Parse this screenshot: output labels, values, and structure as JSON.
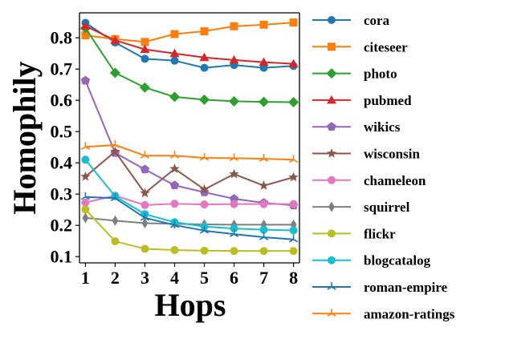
{
  "chart_data": {
    "type": "line",
    "title": "",
    "xlabel": "Hops",
    "ylabel": "Homophily",
    "x": [
      1,
      2,
      3,
      4,
      5,
      6,
      7,
      8
    ],
    "xlim": [
      0.8,
      8.2
    ],
    "ylim": [
      0.08,
      0.88
    ],
    "xticks": [
      "1",
      "2",
      "3",
      "4",
      "5",
      "6",
      "7",
      "8"
    ],
    "yticks": [
      "0.1",
      "0.2",
      "0.3",
      "0.4",
      "0.5",
      "0.6",
      "0.7",
      "0.8"
    ],
    "grid": false,
    "legend_position": "right, outside plot",
    "series": [
      {
        "name": "cora",
        "color": "#1f77b4",
        "marker": "circle",
        "values": [
          0.848,
          0.785,
          0.733,
          0.727,
          0.704,
          0.713,
          0.704,
          0.71
        ]
      },
      {
        "name": "citeseer",
        "color": "#ff7f0e",
        "marker": "square",
        "values": [
          0.808,
          0.796,
          0.787,
          0.812,
          0.821,
          0.837,
          0.842,
          0.849
        ]
      },
      {
        "name": "photo",
        "color": "#2ca02c",
        "marker": "diamond",
        "values": [
          0.831,
          0.688,
          0.641,
          0.611,
          0.602,
          0.597,
          0.595,
          0.594
        ]
      },
      {
        "name": "pubmed",
        "color": "#d62728",
        "marker": "triangle-up",
        "values": [
          0.838,
          0.792,
          0.763,
          0.75,
          0.737,
          0.729,
          0.722,
          0.717
        ]
      },
      {
        "name": "wikics",
        "color": "#9467bd",
        "marker": "pentagon",
        "values": [
          0.663,
          0.432,
          0.379,
          0.328,
          0.306,
          0.285,
          0.272,
          0.264
        ]
      },
      {
        "name": "wisconsin",
        "color": "#8c564b",
        "marker": "star",
        "values": [
          0.356,
          0.436,
          0.303,
          0.381,
          0.315,
          0.364,
          0.327,
          0.354
        ]
      },
      {
        "name": "chameleon",
        "color": "#e377c2",
        "marker": "circle",
        "values": [
          0.273,
          0.295,
          0.265,
          0.269,
          0.267,
          0.268,
          0.268,
          0.268
        ]
      },
      {
        "name": "squirrel",
        "color": "#7f7f7f",
        "marker": "thin-diamond",
        "values": [
          0.224,
          0.215,
          0.207,
          0.205,
          0.203,
          0.202,
          0.202,
          0.202
        ]
      },
      {
        "name": "flickr",
        "color": "#bcbd22",
        "marker": "circle",
        "values": [
          0.251,
          0.149,
          0.125,
          0.121,
          0.119,
          0.118,
          0.118,
          0.118
        ]
      },
      {
        "name": "blogcatalog",
        "color": "#17becf",
        "marker": "circle",
        "values": [
          0.41,
          0.293,
          0.236,
          0.21,
          0.196,
          0.19,
          0.186,
          0.184
        ]
      },
      {
        "name": "roman-empire",
        "color": "#1f77b4",
        "marker": "tri-up",
        "values": [
          0.291,
          0.287,
          0.224,
          0.201,
          0.183,
          0.172,
          0.162,
          0.155
        ]
      },
      {
        "name": "amazon-ratings",
        "color": "#ff7f0e",
        "marker": "tri-up",
        "values": [
          0.451,
          0.457,
          0.423,
          0.423,
          0.416,
          0.415,
          0.413,
          0.41
        ]
      }
    ]
  }
}
